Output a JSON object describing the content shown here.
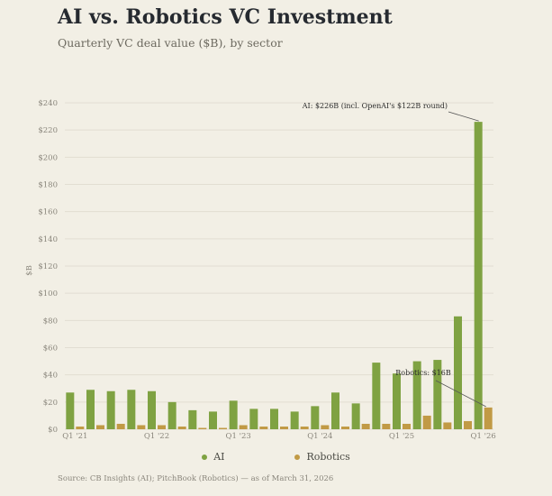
{
  "header": {
    "title": "AI vs. Robotics VC Investment",
    "subtitle": "Quarterly VC deal value ($B), by sector"
  },
  "footer": {
    "source": "Source: CB Insights (AI); PitchBook (Robotics) — as of March 31, 2026"
  },
  "colors": {
    "ai": "#7fa242",
    "robotics": "#c19a45",
    "grid": "#e2ded2",
    "background": "#f2efe5"
  },
  "chart_data": {
    "type": "bar",
    "title": "AI vs. Robotics VC Investment",
    "subtitle": "Quarterly VC deal value ($B), by sector",
    "ylabel": "$B",
    "xlabel": "",
    "ylim": [
      0,
      240
    ],
    "yticks": [
      "$0",
      "$20",
      "$40",
      "$60",
      "$80",
      "$100",
      "$120",
      "$140",
      "$160",
      "$180",
      "$200",
      "$220",
      "$240"
    ],
    "grid": true,
    "legend_position": "bottom",
    "categories": [
      "Q1 '21",
      "Q2 '21",
      "Q3 '21",
      "Q4 '21",
      "Q1 '22",
      "Q2 '22",
      "Q3 '22",
      "Q4 '22",
      "Q1 '23",
      "Q2 '23",
      "Q3 '23",
      "Q4 '23",
      "Q1 '24",
      "Q2 '24",
      "Q3 '24",
      "Q4 '24",
      "Q1 '25",
      "Q2 '25",
      "Q3 '25",
      "Q4 '25",
      "Q1 '26"
    ],
    "xtick_labels": [
      "Q1 '21",
      "",
      "",
      "",
      "Q1 '22",
      "",
      "",
      "",
      "Q1 '23",
      "",
      "",
      "",
      "Q1 '24",
      "",
      "",
      "",
      "Q1 '25",
      "",
      "",
      "",
      "Q1 '26"
    ],
    "series": [
      {
        "name": "AI",
        "values": [
          27,
          29,
          28,
          29,
          28,
          20,
          14,
          13,
          21,
          15,
          15,
          13,
          17,
          27,
          19,
          49,
          41,
          50,
          51,
          83,
          226
        ]
      },
      {
        "name": "Robotics",
        "values": [
          2,
          3,
          4,
          3,
          3,
          2,
          1,
          1,
          3,
          2,
          2,
          2,
          3,
          2,
          4,
          4,
          4,
          10,
          5,
          6,
          16
        ]
      }
    ],
    "annotations": [
      {
        "text": "AI: $226B  (incl. OpenAI's $122B round)",
        "category_index": 20,
        "series": "AI",
        "value": 226
      },
      {
        "text": "Robotics: $16B",
        "category_index": 20,
        "series": "Robotics",
        "value": 16
      }
    ]
  }
}
